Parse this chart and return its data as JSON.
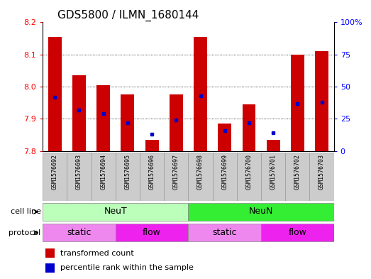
{
  "title": "GDS5800 / ILMN_1680144",
  "samples": [
    "GSM1576692",
    "GSM1576693",
    "GSM1576694",
    "GSM1576695",
    "GSM1576696",
    "GSM1576697",
    "GSM1576698",
    "GSM1576699",
    "GSM1576700",
    "GSM1576701",
    "GSM1576702",
    "GSM1576703"
  ],
  "red_values": [
    8.155,
    8.035,
    8.005,
    7.975,
    7.835,
    7.975,
    8.155,
    7.885,
    7.945,
    7.835,
    8.1,
    8.11
  ],
  "blue_values": [
    42,
    32,
    29,
    22,
    13,
    24,
    43,
    16,
    22,
    14,
    37,
    38
  ],
  "ymin": 7.8,
  "ymax": 8.2,
  "y_ticks": [
    7.8,
    7.9,
    8.0,
    8.1,
    8.2
  ],
  "right_yticks": [
    0,
    25,
    50,
    75,
    100
  ],
  "right_yticklabels": [
    "0",
    "25",
    "50",
    "75",
    "100%"
  ],
  "cell_line_groups": [
    {
      "label": "NeuT",
      "start": 0,
      "end": 6,
      "color": "#bbffbb"
    },
    {
      "label": "NeuN",
      "start": 6,
      "end": 12,
      "color": "#33ee33"
    }
  ],
  "protocol_groups": [
    {
      "label": "static",
      "start": 0,
      "end": 3,
      "color": "#ee88ee"
    },
    {
      "label": "flow",
      "start": 3,
      "end": 6,
      "color": "#ee22ee"
    },
    {
      "label": "static",
      "start": 6,
      "end": 9,
      "color": "#ee88ee"
    },
    {
      "label": "flow",
      "start": 9,
      "end": 12,
      "color": "#ee22ee"
    }
  ],
  "bar_color": "#cc0000",
  "dot_color": "#0000cc",
  "bar_width": 0.55,
  "background_color": "#ffffff",
  "title_fontsize": 11,
  "tick_fontsize": 8,
  "sample_fontsize": 6,
  "row_label_fontsize": 8,
  "legend_fontsize": 8
}
